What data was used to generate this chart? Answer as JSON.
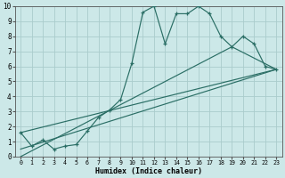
{
  "xlabel": "Humidex (Indice chaleur)",
  "bg_color": "#cce8e8",
  "grid_color": "#aacccc",
  "line_color": "#2a6e65",
  "xlim": [
    -0.5,
    23.5
  ],
  "ylim": [
    0,
    10
  ],
  "line1_x": [
    0,
    1,
    2,
    3,
    4,
    5,
    6,
    7,
    8,
    9,
    10,
    11,
    12,
    13,
    14,
    15,
    16,
    17,
    18,
    19,
    20,
    21,
    22,
    23
  ],
  "line1_y": [
    1.6,
    0.7,
    1.1,
    0.5,
    0.7,
    0.8,
    1.7,
    2.6,
    3.1,
    3.8,
    6.2,
    9.6,
    10.0,
    7.5,
    9.5,
    9.5,
    10.0,
    9.5,
    8.0,
    7.3,
    8.0,
    7.5,
    6.0,
    5.8
  ],
  "line2_x": [
    0,
    23
  ],
  "line2_y": [
    1.6,
    5.8
  ],
  "line3_x": [
    0,
    23
  ],
  "line3_y": [
    0.5,
    5.8
  ],
  "line4_x": [
    0,
    19,
    23
  ],
  "line4_y": [
    0.0,
    7.3,
    5.8
  ]
}
